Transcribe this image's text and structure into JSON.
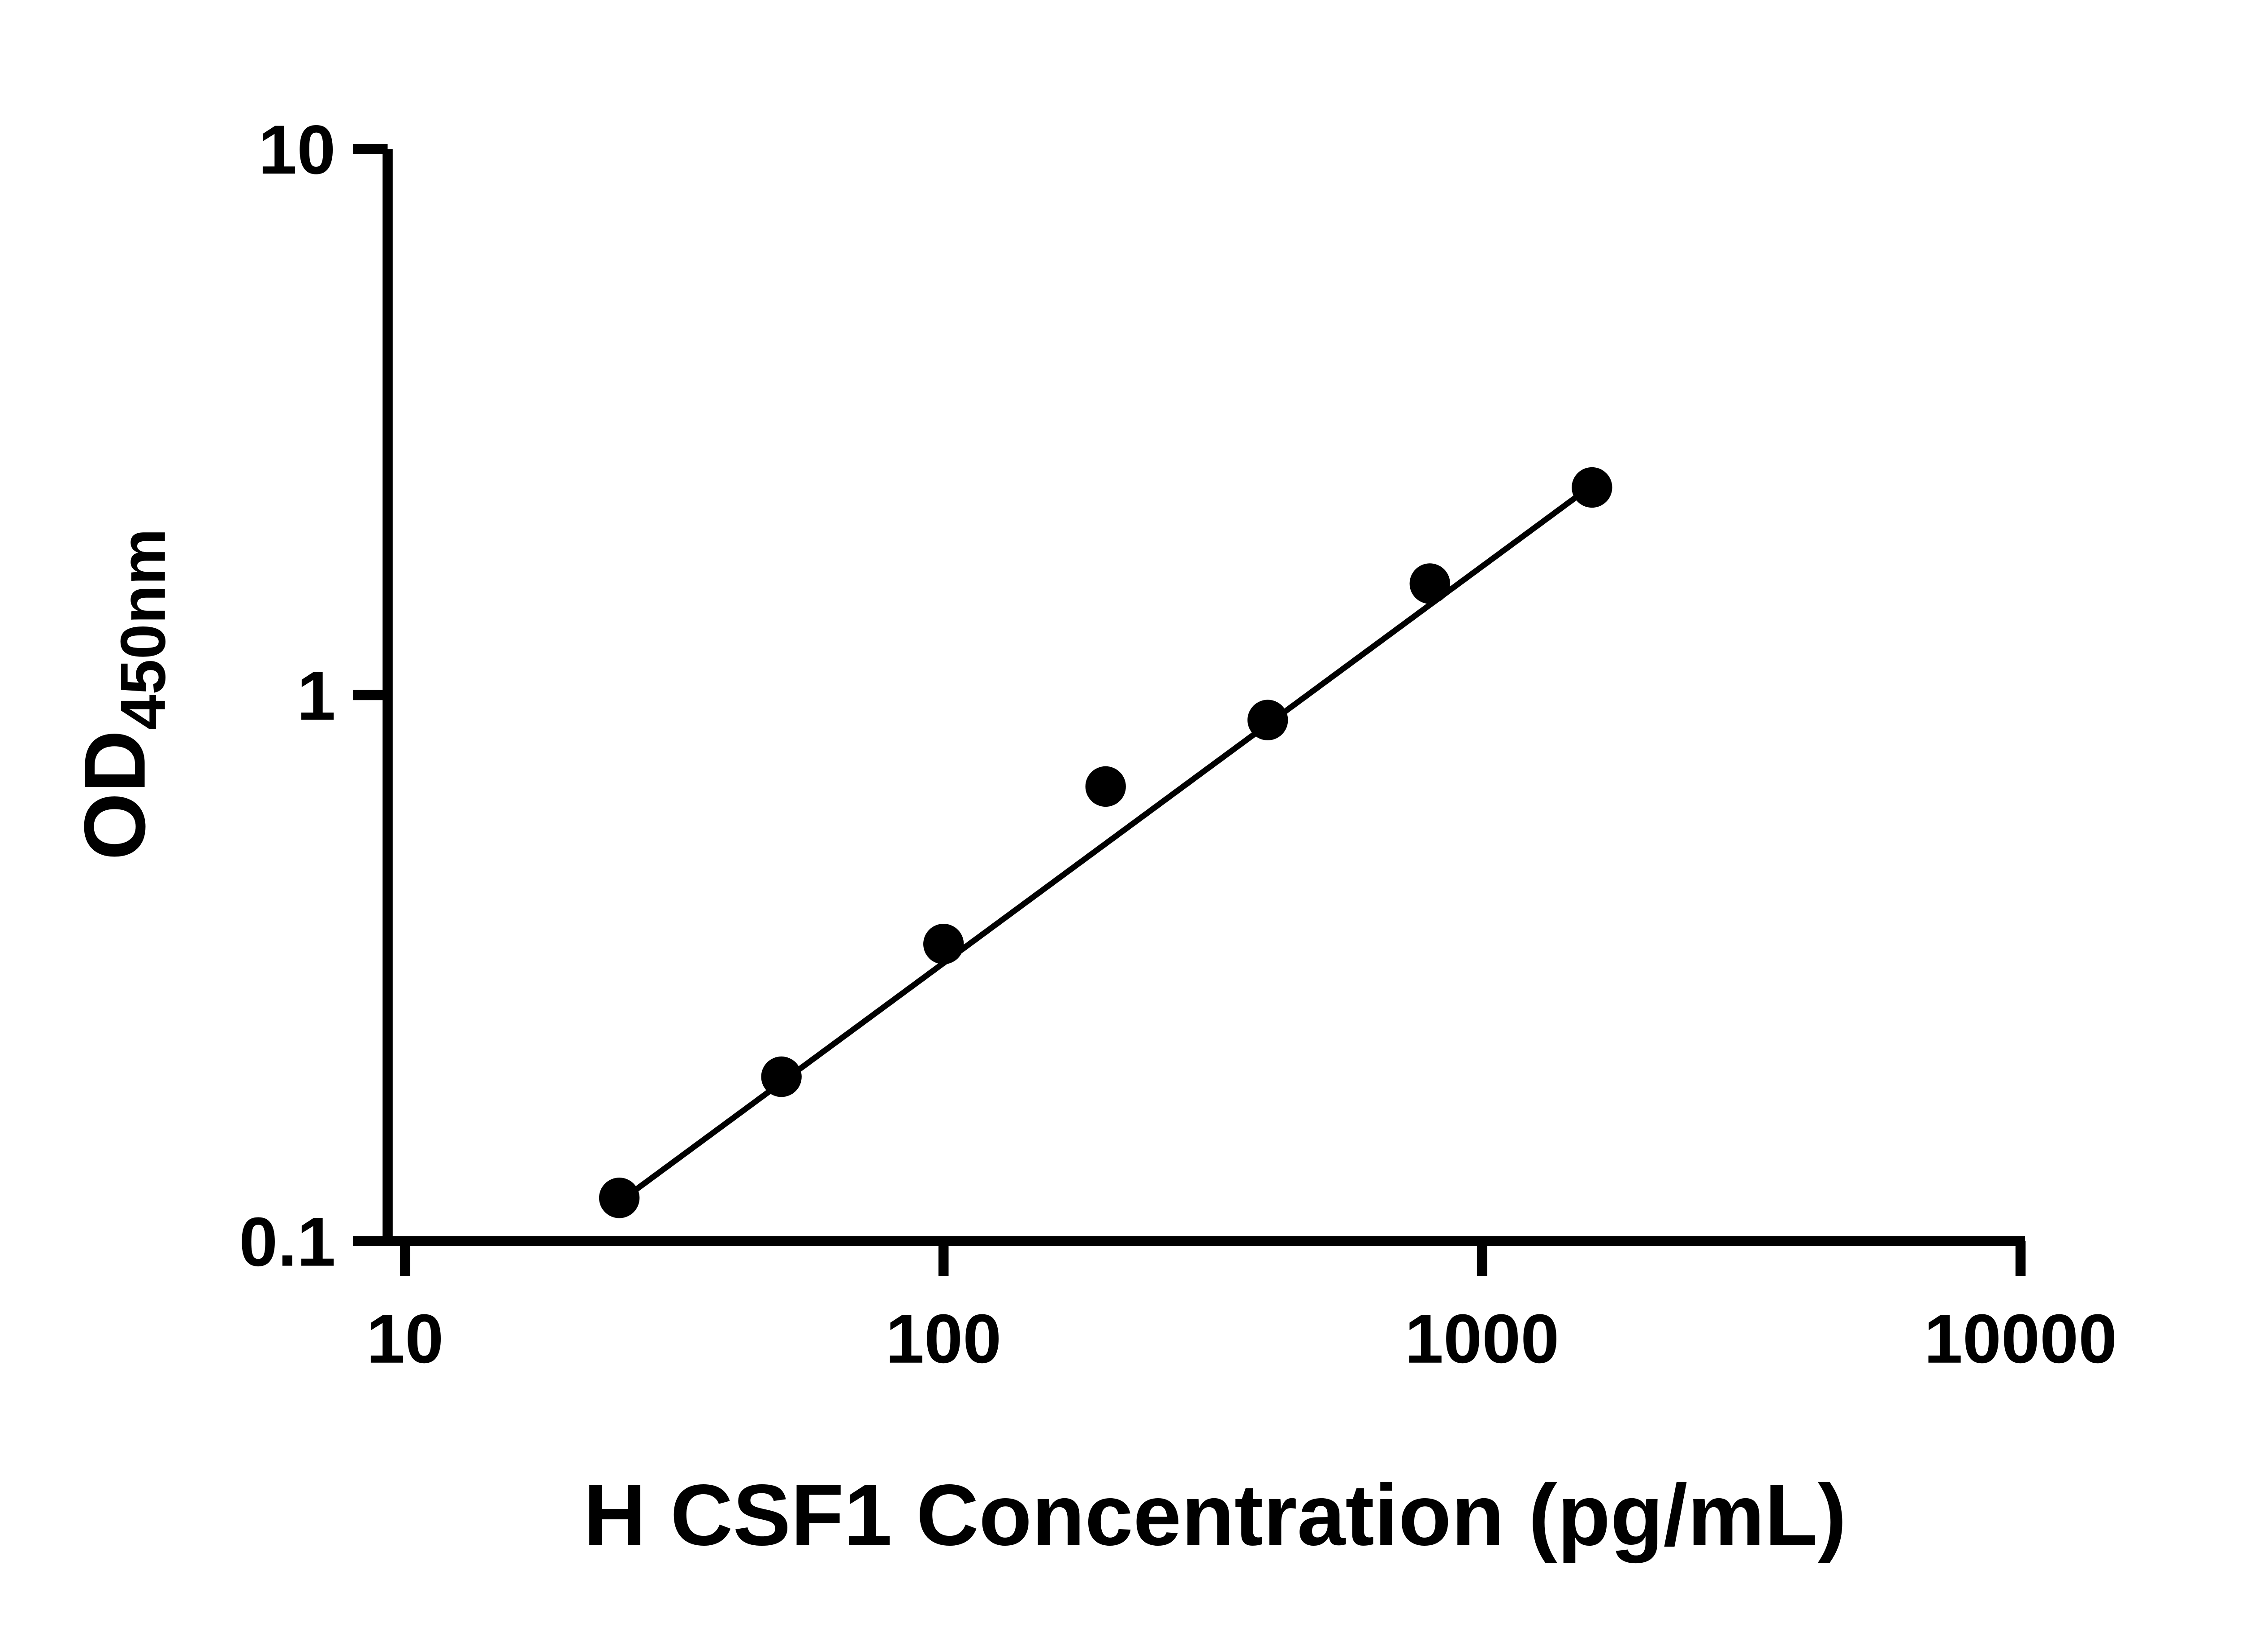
{
  "figure": {
    "background": "#ffffff"
  },
  "chart_data": {
    "type": "scatter",
    "title": "",
    "x_label": "H CSF1 Concentration (pg/mL)",
    "y_label_main": "OD",
    "y_label_sub": "450nm",
    "x_scale": "log",
    "y_scale": "log",
    "x_range": [
      10,
      10000
    ],
    "y_range": [
      0.1,
      10
    ],
    "x_ticks": [
      {
        "value": 10,
        "label": "10"
      },
      {
        "value": 100,
        "label": "100"
      },
      {
        "value": 1000,
        "label": "1000"
      },
      {
        "value": 10000,
        "label": "10000"
      }
    ],
    "y_ticks": [
      {
        "value": 0.1,
        "label": "0.1"
      },
      {
        "value": 1,
        "label": "1"
      },
      {
        "value": 10,
        "label": "10"
      }
    ],
    "grid": false,
    "legend": null,
    "marker_color": "#000000",
    "line_color": "#000000",
    "axis_color": "#000000",
    "points": [
      {
        "x": 25,
        "y": 0.12
      },
      {
        "x": 50,
        "y": 0.2
      },
      {
        "x": 100,
        "y": 0.35
      },
      {
        "x": 200,
        "y": 0.68
      },
      {
        "x": 400,
        "y": 0.9
      },
      {
        "x": 800,
        "y": 1.6
      },
      {
        "x": 1600,
        "y": 2.4
      }
    ],
    "trend_line": {
      "x1": 25,
      "y1": 0.118,
      "x2": 1600,
      "y2": 2.42
    }
  }
}
